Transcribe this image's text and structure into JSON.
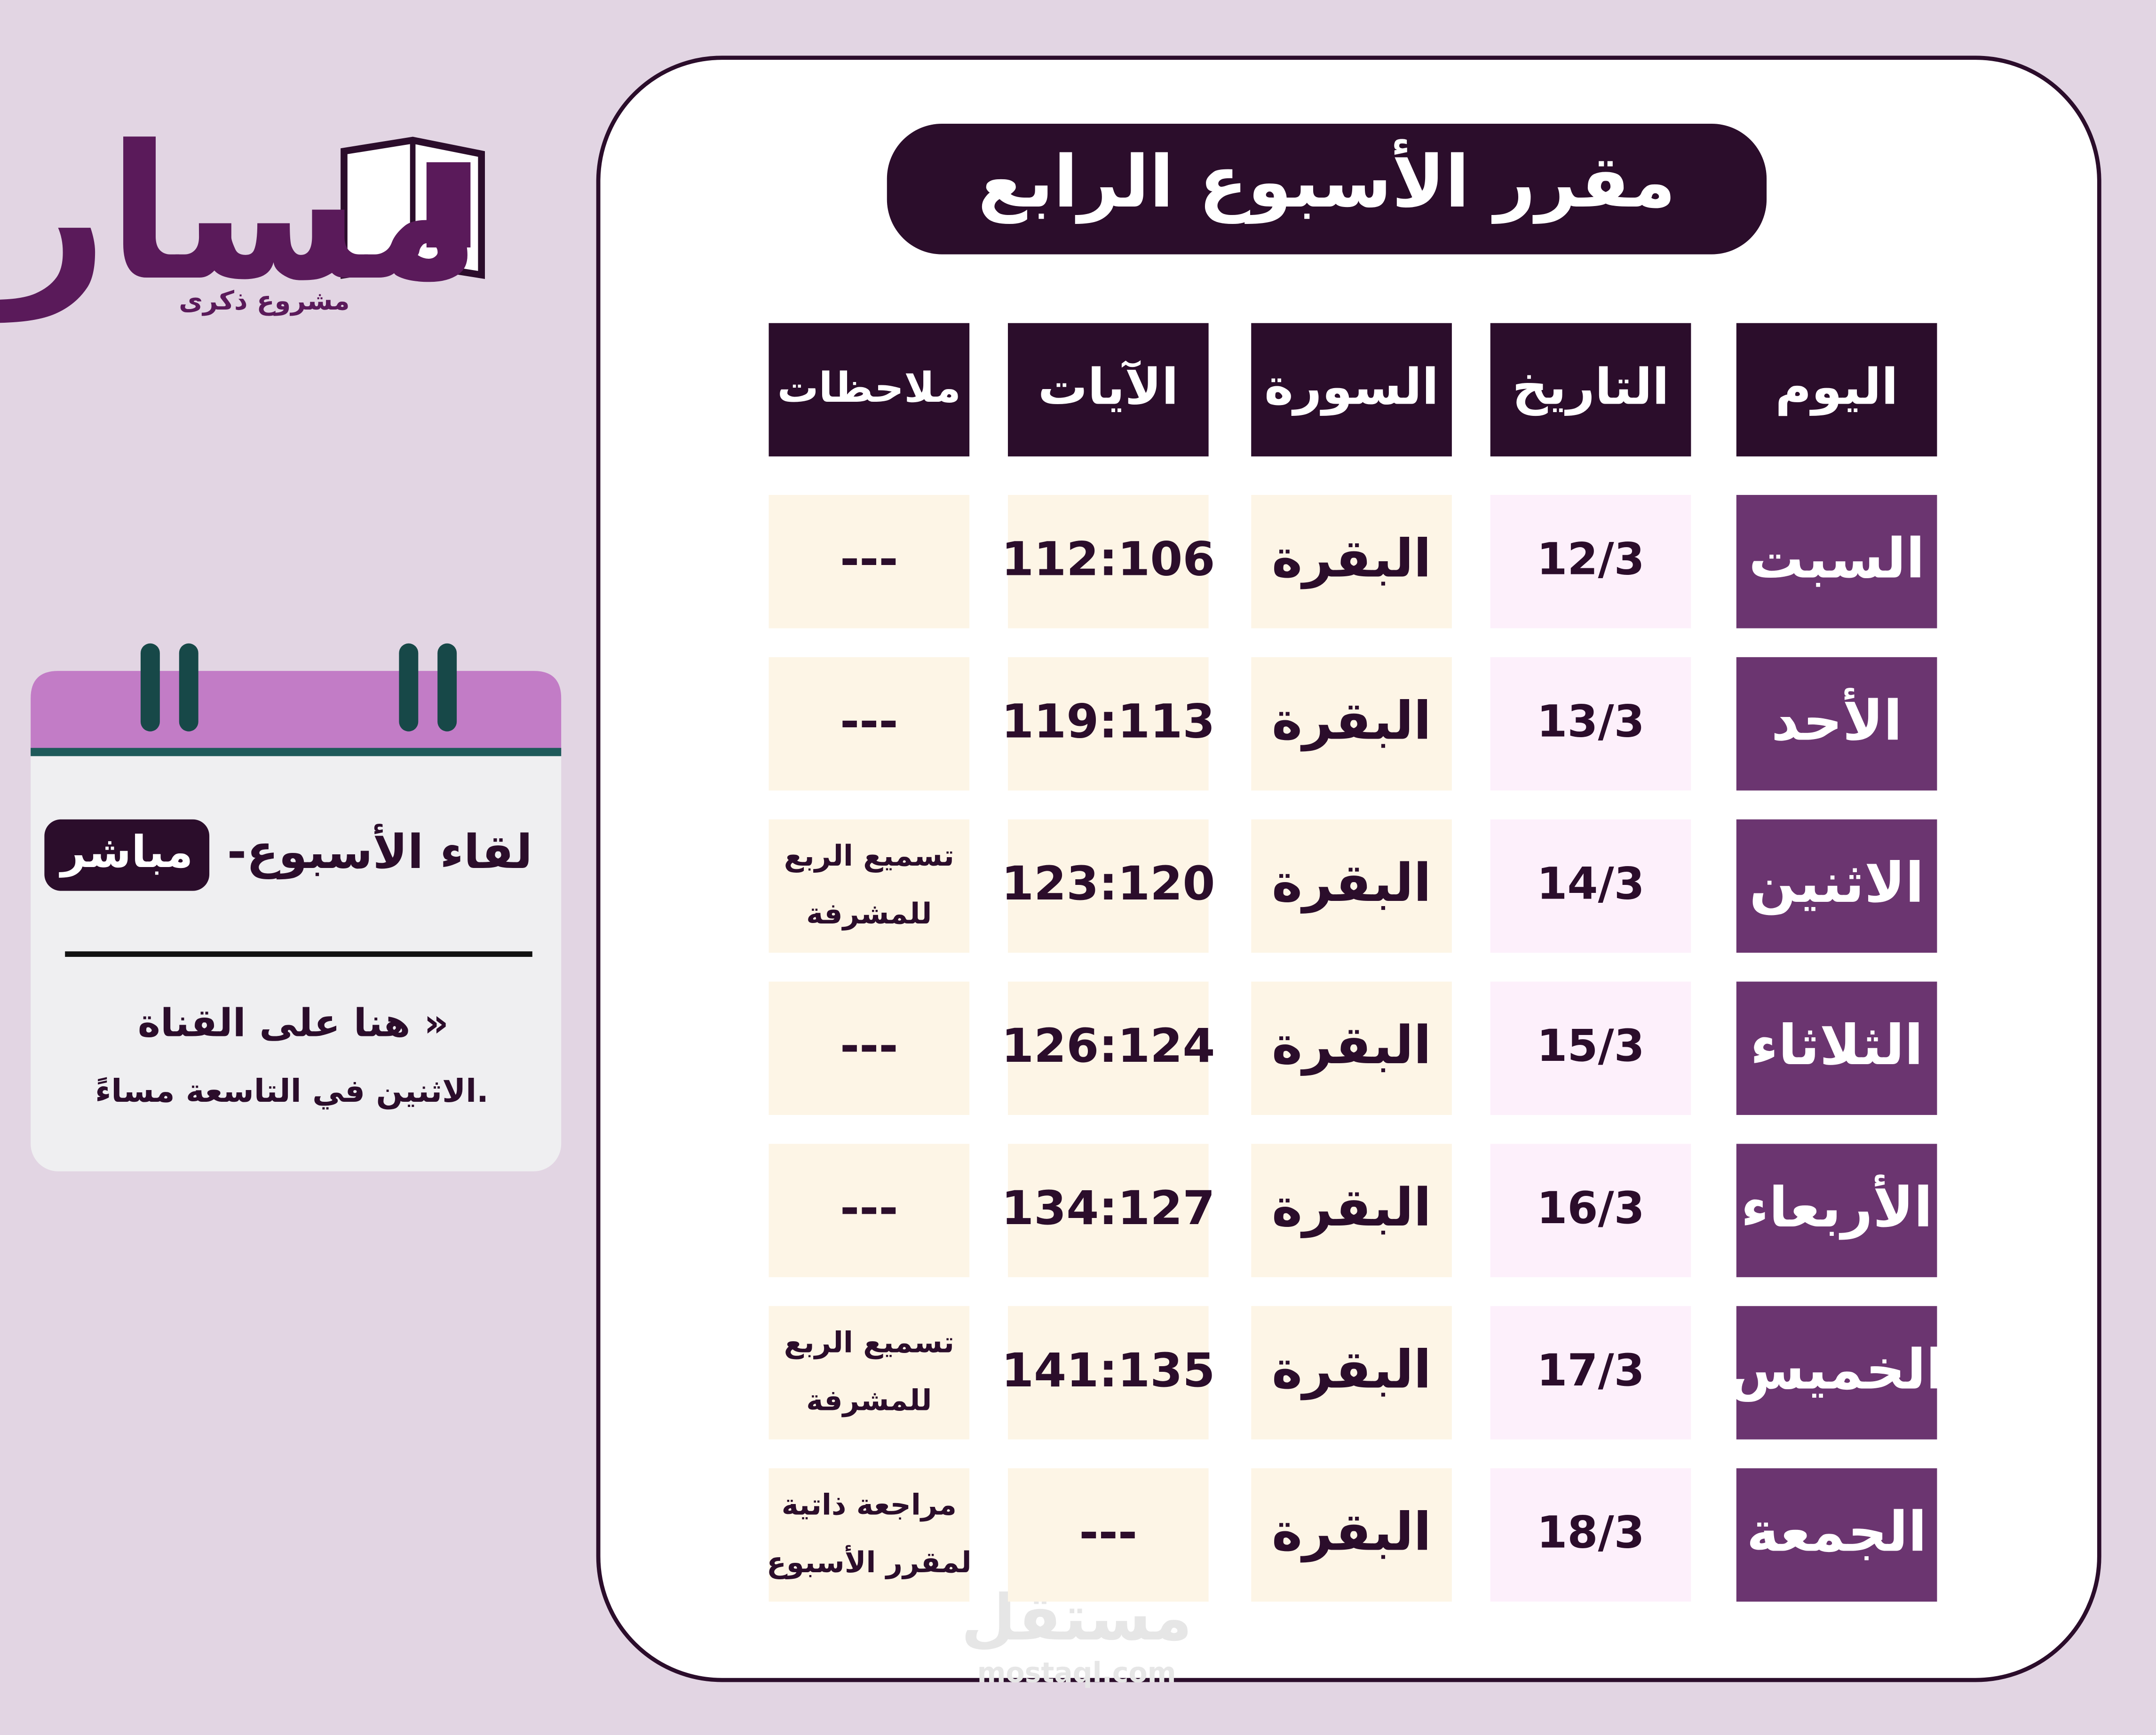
{
  "logo": {
    "name": "مسار",
    "subtitle": "مشروع ذكرى"
  },
  "title": "مقرر الأسبوع الرابع",
  "table": {
    "headers": [
      "اليوم",
      "التاريخ",
      "السورة",
      "الآيات",
      "ملاحظات"
    ],
    "rows": [
      [
        "السبت",
        "12/3",
        "البقرة",
        "112:106",
        [
          "---"
        ]
      ],
      [
        "الأحد",
        "13/3",
        "البقرة",
        "119:113",
        [
          "---"
        ]
      ],
      [
        "الاثنين",
        "14/3",
        "البقرة",
        "123:120",
        [
          "تسميع الربع",
          "للمشرفة"
        ]
      ],
      [
        "الثلاثاء",
        "15/3",
        "البقرة",
        "126:124",
        [
          "---"
        ]
      ],
      [
        "الأربعاء",
        "16/3",
        "البقرة",
        "134:127",
        [
          "---"
        ]
      ],
      [
        "الخميس",
        "17/3",
        "البقرة",
        "141:135",
        [
          "تسميع الربع",
          "للمشرفة"
        ]
      ],
      [
        "الجمعة",
        "18/3",
        "البقرة",
        "---",
        [
          "مراجعة ذاتية",
          "لمقرر الأسبوع"
        ]
      ]
    ]
  },
  "calendar": {
    "heading": "-لقاء الأسبوع",
    "badge": "مباشر",
    "line1": "هنا على القناة »",
    "line2": "الاثنين في التاسعة مساءً."
  },
  "watermark": {
    "name": "مستقل",
    "site": "mostaql.com"
  }
}
